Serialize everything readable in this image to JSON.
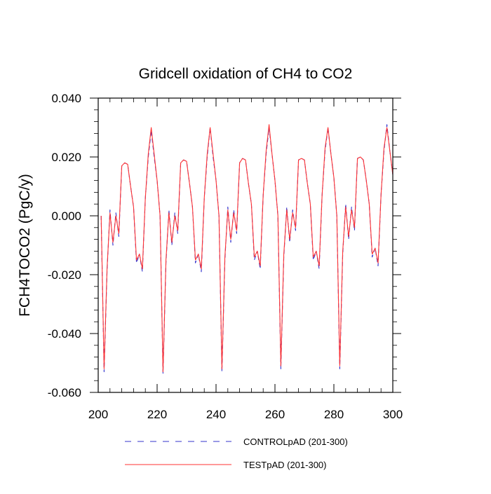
{
  "chart_data": {
    "type": "line",
    "title": "Gridcell oxidation of CH4 to CO2",
    "xlabel": "",
    "ylabel": "FCH4TOCO2  (PgC/y)",
    "xlim": [
      200,
      300
    ],
    "ylim": [
      -0.06,
      0.04
    ],
    "xticks": [
      200,
      220,
      240,
      260,
      280,
      300
    ],
    "xtick_labels": [
      "200",
      "220",
      "240",
      "260",
      "280",
      "300"
    ],
    "yticks": [
      -0.06,
      -0.04,
      -0.02,
      0.0,
      0.02,
      0.04
    ],
    "ytick_labels": [
      "-0.060",
      "-0.040",
      "-0.020",
      "0.000",
      "0.020",
      "0.040"
    ],
    "grid": false,
    "legend_position": "bottom",
    "x": [
      201,
      202,
      203,
      204,
      205,
      206,
      207,
      208,
      209,
      210,
      211,
      212,
      213,
      214,
      215,
      216,
      217,
      218,
      219,
      220,
      221,
      222,
      223,
      224,
      225,
      226,
      227,
      228,
      229,
      230,
      231,
      232,
      233,
      234,
      235,
      236,
      237,
      238,
      239,
      240,
      241,
      242,
      243,
      244,
      245,
      246,
      247,
      248,
      249,
      250,
      251,
      252,
      253,
      254,
      255,
      256,
      257,
      258,
      259,
      260,
      261,
      262,
      263,
      264,
      265,
      266,
      267,
      268,
      269,
      270,
      271,
      272,
      273,
      274,
      275,
      276,
      277,
      278,
      279,
      280,
      281,
      282,
      283,
      284,
      285,
      286,
      287,
      288,
      289,
      290,
      291,
      292,
      293,
      294,
      295,
      296,
      297,
      298,
      299,
      300
    ],
    "series": [
      {
        "name": "CONTROLpAD (201-300)",
        "color": "#3333cc",
        "style": "dashed",
        "values": [
          0.0,
          -0.053,
          -0.019,
          0.002,
          -0.01,
          0.001,
          -0.007,
          0.017,
          0.018,
          0.0175,
          0.01,
          0.003,
          -0.016,
          -0.013,
          -0.019,
          0.006,
          0.02,
          0.029,
          0.02,
          0.012,
          0.0,
          -0.0535,
          -0.016,
          0.002,
          -0.01,
          0.001,
          -0.006,
          0.018,
          0.019,
          0.0185,
          0.011,
          0.003,
          -0.016,
          -0.013,
          -0.019,
          0.006,
          0.02,
          0.03,
          0.02,
          0.012,
          0.0,
          -0.053,
          -0.015,
          0.003,
          -0.009,
          0.002,
          -0.006,
          0.018,
          0.0195,
          0.019,
          0.011,
          0.004,
          -0.015,
          -0.012,
          -0.018,
          0.007,
          0.021,
          0.03,
          0.021,
          0.012,
          0.0,
          -0.052,
          -0.014,
          0.003,
          -0.009,
          0.002,
          -0.005,
          0.019,
          0.0195,
          0.019,
          0.011,
          0.004,
          -0.015,
          -0.012,
          -0.018,
          0.007,
          0.022,
          0.03,
          0.021,
          0.013,
          0.0,
          -0.052,
          -0.013,
          0.004,
          -0.008,
          0.003,
          -0.005,
          0.0195,
          0.02,
          0.019,
          0.012,
          0.004,
          -0.014,
          -0.011,
          -0.017,
          0.007,
          0.022,
          0.031,
          0.022,
          0.014
        ]
      },
      {
        "name": "TESTpAD (201-300)",
        "color": "#ff3333",
        "style": "solid",
        "values": [
          0.0,
          -0.052,
          -0.018,
          0.001,
          -0.009,
          0.0,
          -0.006,
          0.017,
          0.018,
          0.0175,
          0.01,
          0.003,
          -0.015,
          -0.013,
          -0.018,
          0.006,
          0.021,
          0.03,
          0.021,
          0.012,
          0.0,
          -0.053,
          -0.015,
          0.001,
          -0.009,
          0.0,
          -0.005,
          0.018,
          0.019,
          0.0185,
          0.011,
          0.003,
          -0.015,
          -0.013,
          -0.018,
          0.006,
          0.021,
          0.03,
          0.021,
          0.012,
          0.0,
          -0.052,
          -0.014,
          0.002,
          -0.008,
          0.001,
          -0.005,
          0.018,
          0.0195,
          0.019,
          0.011,
          0.004,
          -0.014,
          -0.012,
          -0.017,
          0.007,
          0.022,
          0.031,
          0.021,
          0.012,
          0.0,
          -0.051,
          -0.013,
          0.002,
          -0.008,
          0.001,
          -0.004,
          0.019,
          0.0195,
          0.019,
          0.011,
          0.004,
          -0.014,
          -0.012,
          -0.017,
          0.007,
          0.023,
          0.03,
          0.021,
          0.013,
          0.0,
          -0.051,
          -0.012,
          0.003,
          -0.007,
          0.002,
          -0.004,
          0.0195,
          0.02,
          0.019,
          0.012,
          0.004,
          -0.013,
          -0.011,
          -0.016,
          0.007,
          0.023,
          0.03,
          0.022,
          0.014
        ]
      }
    ]
  }
}
